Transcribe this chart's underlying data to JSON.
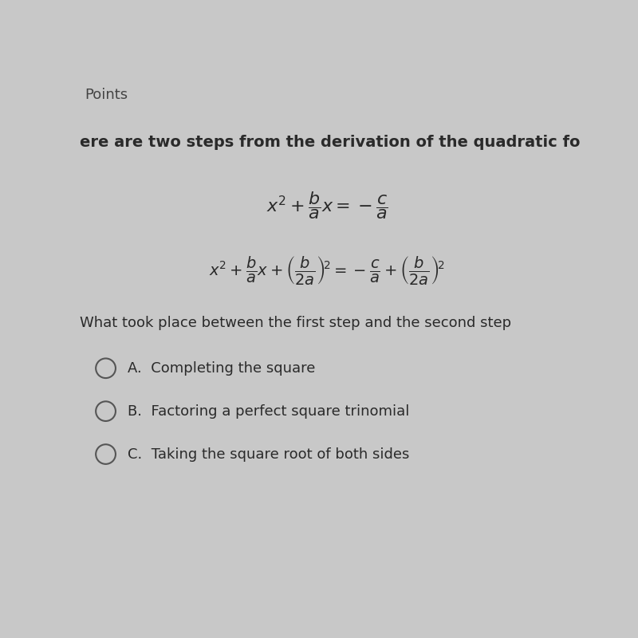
{
  "bg_color": "#c8c8c8",
  "header_text": "Points",
  "question_text": "ere are two steps from the derivation of the quadratic fo",
  "question2": "What took place between the first step and the second step",
  "choices": [
    "A.  Completing the square",
    "B.  Factoring a perfect square trinomial",
    "C.  Taking the square root of both sides"
  ],
  "text_color": "#2a2a2a",
  "circle_color": "#555555",
  "header_color": "#444444",
  "fontsize_header": 13,
  "fontsize_question": 14,
  "fontsize_eq1": 16,
  "fontsize_eq2": 14,
  "fontsize_question2": 13,
  "fontsize_choice": 13
}
